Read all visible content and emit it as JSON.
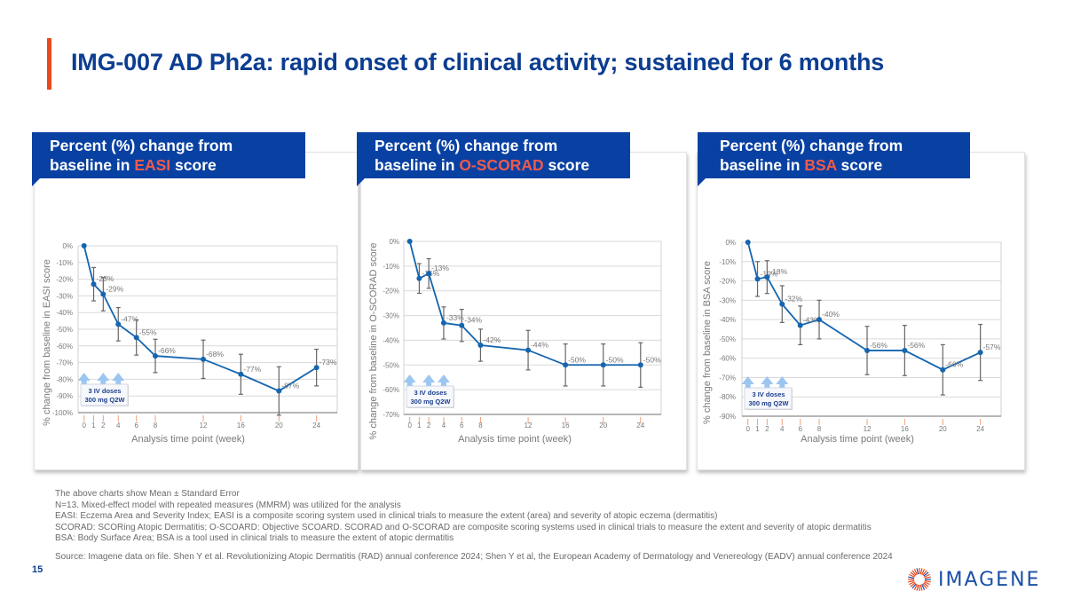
{
  "slide": {
    "title": "IMG-007 AD Ph2a: rapid onset of clinical activity; sustained for 6 months",
    "page_number": "15",
    "accent_color": "#e8491d",
    "title_color": "#0b3d91",
    "header_color": "#0941a3",
    "highlight_color": "#ef5a4a",
    "line_color": "#1565b0",
    "logo_text": "IMAGENE"
  },
  "cards": [
    {
      "header_prefix": "Percent (%) change from",
      "header_line2_prefix": "baseline in ",
      "header_highlight": "EASI",
      "header_suffix": " score"
    },
    {
      "header_prefix": "Percent (%) change from",
      "header_line2_prefix": "baseline in ",
      "header_highlight": "O-SCORAD",
      "header_suffix": " score"
    },
    {
      "header_prefix": "Percent (%) change from",
      "header_line2_prefix": "baseline in ",
      "header_highlight": "BSA",
      "header_suffix": " score"
    }
  ],
  "chart_data": [
    {
      "type": "line",
      "title": "Percent (%) change from baseline in EASI score",
      "xlabel": "Analysis time point (week)",
      "ylabel": "% change from baseline in EASI score",
      "x": [
        0,
        1,
        2,
        4,
        6,
        8,
        12,
        16,
        20,
        24
      ],
      "x_ticks": [
        "0",
        "1",
        "2",
        "4",
        "6",
        "8",
        "12",
        "16",
        "20",
        "24"
      ],
      "plotted_x": [
        0,
        1,
        2,
        4,
        6,
        8,
        12,
        16,
        20,
        24
      ],
      "values": [
        0,
        -23,
        -29,
        -47,
        -55,
        -66,
        -68,
        -77,
        -87,
        -73
      ],
      "error": [
        0,
        10,
        10,
        10,
        10.5,
        10,
        11.5,
        12,
        14.5,
        11
      ],
      "data_labels": [
        "",
        "-23%",
        "-29%",
        "-47%",
        "-55%",
        "-66%",
        "-68%",
        "-77%",
        "-87%",
        "-73%"
      ],
      "ylim": [
        -100,
        0
      ],
      "y_ticks": [
        "0%",
        "-10%",
        "-20%",
        "-30%",
        "-40%",
        "-50%",
        "-60%",
        "-70%",
        "-80%",
        "-90%",
        "-100%"
      ],
      "grid": true,
      "annotation": [
        "3 IV doses",
        "300 mg Q2W"
      ],
      "dose_weeks": [
        0,
        2,
        4
      ]
    },
    {
      "type": "line",
      "title": "Percent (%) change from baseline in O-SCORAD score",
      "xlabel": "Analysis time point (week)",
      "ylabel": "% change from baseline in O-SCORAD  score",
      "x": [
        0,
        1,
        2,
        4,
        6,
        8,
        12,
        16,
        20,
        24
      ],
      "x_ticks": [
        "0",
        "1",
        "2",
        "4",
        "6",
        "8",
        "12",
        "16",
        "20",
        "24"
      ],
      "values": [
        0,
        -15,
        -13,
        -33,
        -34,
        -42,
        -44,
        -50,
        -50,
        -50
      ],
      "error": [
        0,
        6,
        6,
        6.5,
        6.5,
        6.5,
        8,
        8.5,
        8.5,
        9
      ],
      "data_labels": [
        "",
        "-15%",
        "-13%",
        "-33%",
        "-34%",
        "-42%",
        "-44%",
        "-50%",
        "-50%",
        "-50%"
      ],
      "ylim": [
        -70,
        0
      ],
      "y_ticks": [
        "0%",
        "-10%",
        "-20%",
        "-30%",
        "-40%",
        "-50%",
        "-60%",
        "-70%"
      ],
      "grid": true,
      "annotation": [
        "3 IV doses",
        "300 mg Q2W"
      ],
      "dose_weeks": [
        0,
        2,
        4
      ]
    },
    {
      "type": "line",
      "title": "Percent (%) change from baseline in BSA score",
      "xlabel": "Analysis time point (week)",
      "ylabel": "% change from baseline in BSA  score",
      "x": [
        0,
        1,
        2,
        4,
        6,
        8,
        12,
        16,
        20,
        24
      ],
      "x_ticks": [
        "0",
        "1",
        "2",
        "4",
        "6",
        "8",
        "12",
        "16",
        "20",
        "24"
      ],
      "values": [
        0,
        -19,
        -18,
        -32,
        -43,
        -40,
        -56,
        -56,
        -66,
        -57
      ],
      "error": [
        0,
        9,
        8.5,
        9.5,
        10,
        10,
        12.5,
        13,
        13,
        14.5
      ],
      "data_labels": [
        "",
        "-19%",
        "-18%",
        "-32%",
        "-43%",
        "-40%",
        "-56%",
        "-56%",
        "-66%",
        "-57%"
      ],
      "ylim": [
        -90,
        0
      ],
      "y_ticks": [
        "0%",
        "-10%",
        "-20%",
        "-30%",
        "-40%",
        "-50%",
        "-60%",
        "-70%",
        "-80%",
        "-90%"
      ],
      "grid": true,
      "annotation": [
        "3 IV doses",
        "300 mg Q2W"
      ],
      "dose_weeks": [
        0,
        2,
        4
      ]
    }
  ],
  "footnotes": [
    "The above charts show Mean ± Standard Error",
    "N=13. Mixed-effect model with repeated measures (MMRM) was utilized for the analysis",
    "EASI: Eczema Area and Severity Index; EASI is a composite scoring system used in clinical trials to measure the extent (area) and severity of atopic eczema (dermatitis)",
    "SCORAD: SCORing Atopic Dermatitis; O-SCOARD: Objective SCOARD. SCORAD and O-SCORAD are composite scoring systems used in clinical trials to measure the extent and severity of atopic dermatitis",
    "BSA: Body Surface Area; BSA is a tool used in clinical trials to measure the extent of atopic dermatitis"
  ],
  "source": "Source: Imagene data on file. Shen Y et al. Revolutionizing Atopic Dermatitis (RAD) annual conference 2024; Shen Y et al, the European Academy of Dermatology and Venereology (EADV) annual conference 2024"
}
